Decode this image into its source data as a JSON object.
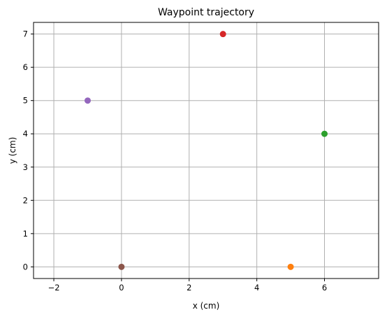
{
  "chart_data": {
    "type": "scatter",
    "title": "Waypoint trajectory",
    "xlabel": "x (cm)",
    "ylabel": "y (cm)",
    "xlim": [
      -2.6,
      7.6
    ],
    "ylim": [
      -0.35,
      7.35
    ],
    "xticks": [
      -2,
      0,
      2,
      4,
      6
    ],
    "yticks": [
      0,
      1,
      2,
      3,
      4,
      5,
      6,
      7
    ],
    "grid": true,
    "points": [
      {
        "x": 0,
        "y": 0,
        "color": "#8c564b"
      },
      {
        "x": 5,
        "y": 0,
        "color": "#ff7f0e"
      },
      {
        "x": 6,
        "y": 4,
        "color": "#2ca02c"
      },
      {
        "x": 3,
        "y": 7,
        "color": "#d62728"
      },
      {
        "x": -1,
        "y": 5,
        "color": "#9467bd"
      }
    ]
  }
}
